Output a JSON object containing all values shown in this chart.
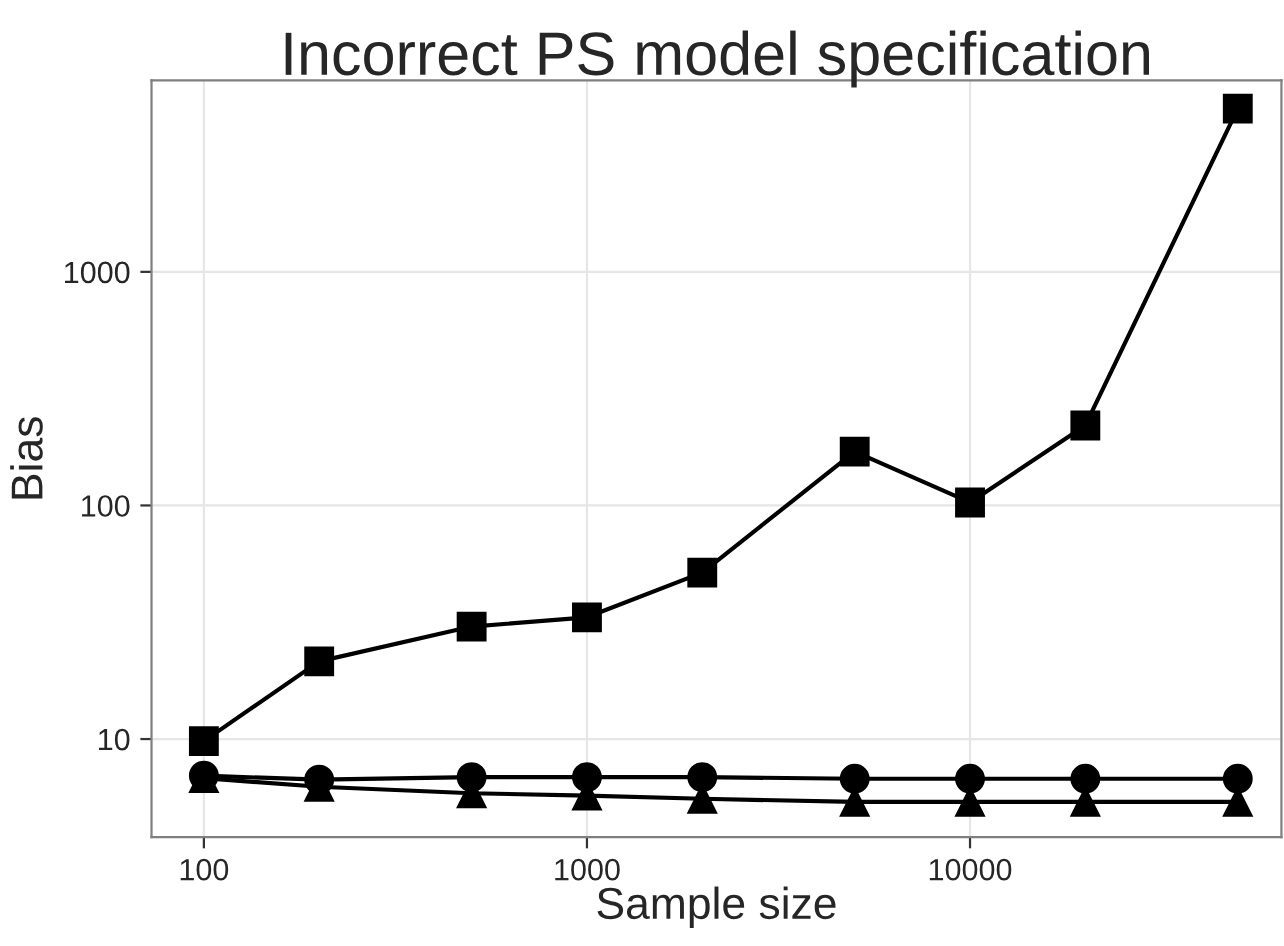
{
  "chart_data": {
    "type": "line",
    "title": "Incorrect PS model specification",
    "xlabel": "Sample size",
    "ylabel": "Bias",
    "x": [
      100,
      200,
      500,
      1000,
      2000,
      5000,
      10000,
      20000,
      50000
    ],
    "series": [
      {
        "color": "#000000",
        "marker": "square",
        "values": [
          9.8,
          21.5,
          30.3,
          33.2,
          51.6,
          170,
          103,
          220,
          5000
        ]
      },
      {
        "color": "#000000",
        "marker": "circle",
        "values": [
          6.97,
          6.7,
          6.87,
          6.87,
          6.87,
          6.76,
          6.76,
          6.76,
          6.76
        ]
      },
      {
        "color": "#000000",
        "marker": "triangle",
        "values": [
          6.8,
          6.25,
          5.86,
          5.73,
          5.55,
          5.38,
          5.38,
          5.38,
          5.38
        ]
      }
    ],
    "log": "xy",
    "xlim": [
      73,
      65000
    ],
    "ylim": [
      3.8,
      6600
    ],
    "xticks": [
      100,
      1000,
      10000
    ],
    "yticks": [
      10,
      100,
      1000
    ],
    "grid": true,
    "legend": false
  }
}
